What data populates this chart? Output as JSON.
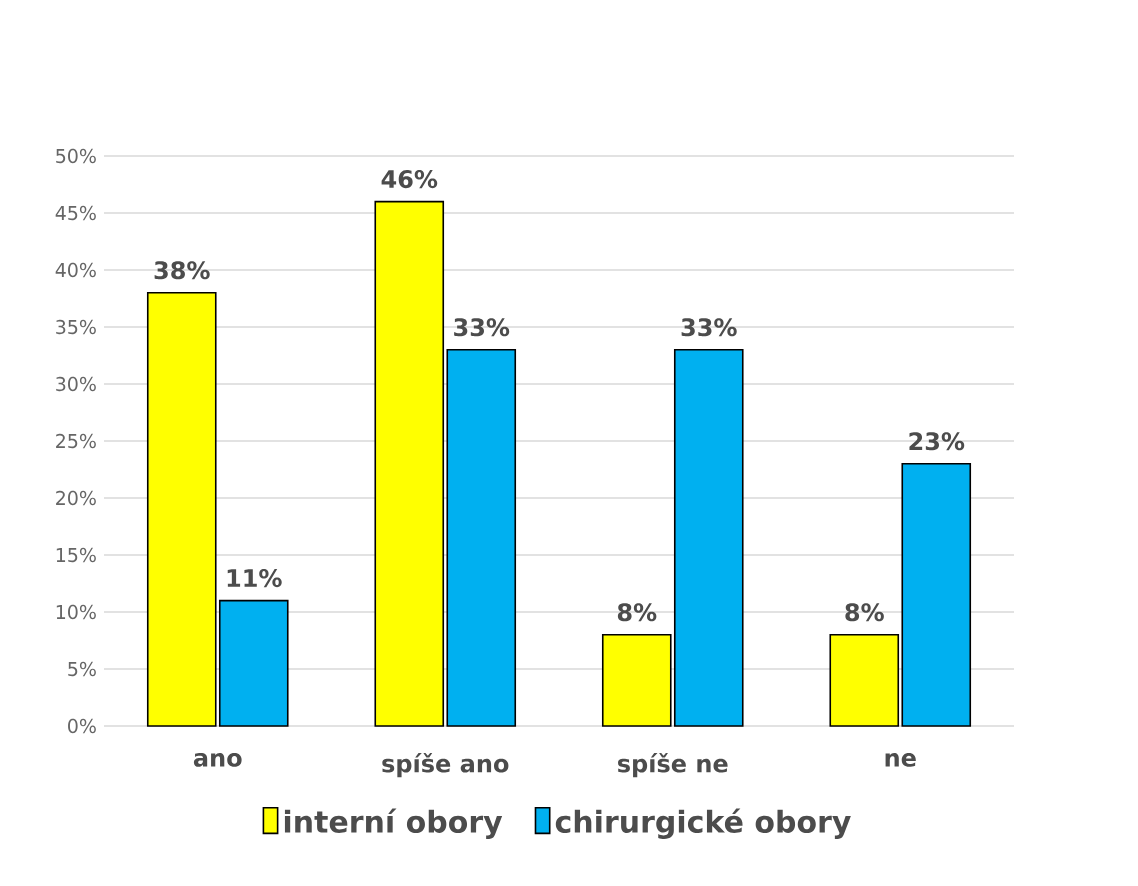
{
  "chart_data": {
    "type": "bar",
    "categories": [
      "ano",
      "spíše ano",
      "spíše ne",
      "ne"
    ],
    "series": [
      {
        "name": "interní obory",
        "color": "#ffff00",
        "values": [
          38,
          46,
          8,
          8
        ],
        "value_labels": [
          "38%",
          "46%",
          "8%",
          "8%"
        ]
      },
      {
        "name": "chirurgické obory",
        "color": "#00b0f0",
        "values": [
          11,
          33,
          33,
          23
        ],
        "value_labels": [
          "11%",
          "33%",
          "33%",
          "23%"
        ]
      }
    ],
    "ylim": [
      0,
      50
    ],
    "yticks": [
      {
        "value": 0,
        "label": "0%"
      },
      {
        "value": 5,
        "label": "5%"
      },
      {
        "value": 10,
        "label": "10%"
      },
      {
        "value": 15,
        "label": "15%"
      },
      {
        "value": 20,
        "label": "20%"
      },
      {
        "value": 25,
        "label": "25%"
      },
      {
        "value": 30,
        "label": "30%"
      },
      {
        "value": 35,
        "label": "35%"
      },
      {
        "value": 40,
        "label": "40%"
      },
      {
        "value": 45,
        "label": "45%"
      },
      {
        "value": 50,
        "label": "50%"
      }
    ],
    "grid": "y",
    "legend": "bottom"
  }
}
